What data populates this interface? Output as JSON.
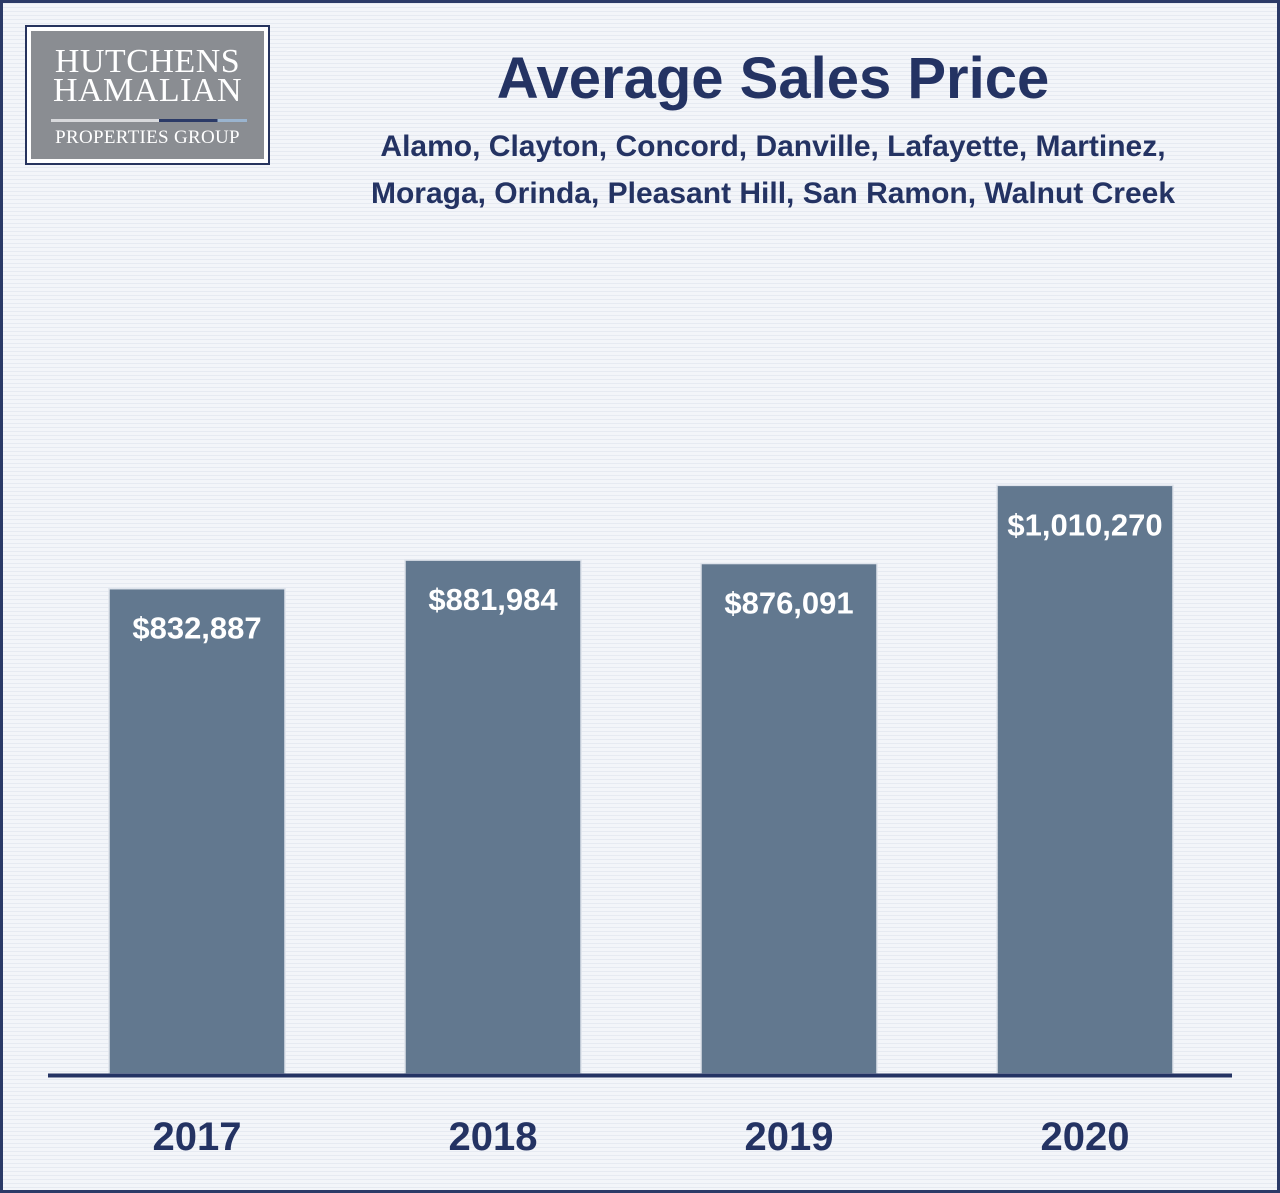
{
  "logo": {
    "line1": "HUTCHENS",
    "line2": "HAMALIAN",
    "line3": "PROPERTIES GROUP"
  },
  "colors": {
    "bar": "#62788f",
    "axis": "#243363",
    "text": "#243363",
    "label": "#ffffff"
  },
  "chart_data": {
    "type": "bar",
    "title": "Average Sales Price",
    "subtitle": [
      "Alamo, Clayton, Concord, Danville, Lafayette, Martinez,",
      "Moraga, Orinda, Pleasant Hill, San Ramon, Walnut Creek"
    ],
    "categories": [
      "2017",
      "2018",
      "2019",
      "2020"
    ],
    "values": [
      832887,
      881984,
      876091,
      1010270
    ],
    "data_labels": [
      "$832,887",
      "$881,984",
      "$876,091",
      "$1,010,270"
    ],
    "xlabel": "",
    "ylabel": "",
    "ylim": [
      0,
      1500000
    ],
    "grid": false,
    "legend": "none"
  }
}
